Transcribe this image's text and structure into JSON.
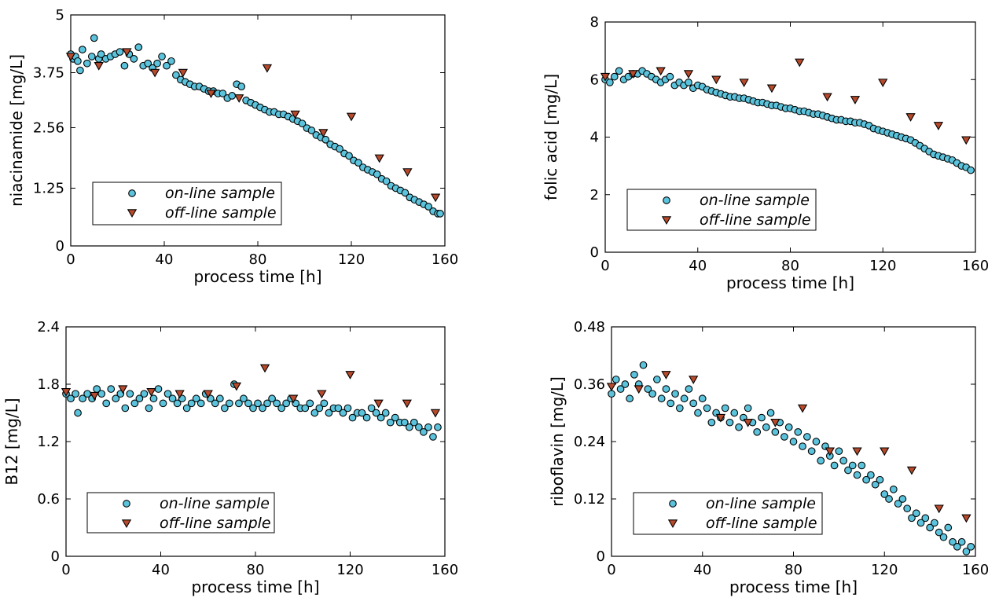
{
  "colors": {
    "online_marker": "#5bc3dc",
    "offline_marker": "#b84a2c",
    "edge": "#000000"
  },
  "chart_data": [
    {
      "type": "scatter",
      "xlabel": "process time [h]",
      "ylabel": "niacinamide [mg/L]",
      "xlim": [
        0,
        160
      ],
      "ylim": [
        0,
        5
      ],
      "xticks": [
        "0",
        "40",
        "80",
        "120",
        "160"
      ],
      "yticks": [
        "0",
        "1.25",
        "2.56",
        "3.75",
        "5"
      ],
      "ytick_values": [
        0,
        1.25,
        2.56,
        3.75,
        5
      ],
      "grid": false,
      "legend_position": "lower-left",
      "series": [
        {
          "name": "on-line sample",
          "marker": "circle",
          "x": [
            0,
            1,
            2,
            3,
            4,
            5,
            7,
            9,
            10,
            12,
            13,
            15,
            17,
            19,
            21,
            23,
            25,
            27,
            29,
            31,
            33,
            35,
            37,
            39,
            41,
            43,
            45,
            47,
            49,
            51,
            53,
            55,
            57,
            59,
            61,
            63,
            65,
            67,
            69,
            71,
            73,
            75,
            77,
            79,
            81,
            83,
            85,
            87,
            89,
            91,
            93,
            95,
            97,
            99,
            101,
            103,
            105,
            107,
            109,
            111,
            113,
            115,
            117,
            119,
            121,
            123,
            125,
            127,
            129,
            131,
            133,
            135,
            137,
            139,
            141,
            143,
            145,
            147,
            149,
            151,
            153,
            155,
            157,
            158
          ],
          "y": [
            4.15,
            4.05,
            4.1,
            4.0,
            3.8,
            4.25,
            3.95,
            4.1,
            4.5,
            4.05,
            4.15,
            4.05,
            4.1,
            4.15,
            4.2,
            3.9,
            4.15,
            4.05,
            4.3,
            3.9,
            3.95,
            3.85,
            3.95,
            4.1,
            3.9,
            4.0,
            3.7,
            3.6,
            3.55,
            3.5,
            3.45,
            3.45,
            3.4,
            3.35,
            3.35,
            3.3,
            3.3,
            3.2,
            3.25,
            3.5,
            3.45,
            3.15,
            3.1,
            3.05,
            3.0,
            2.95,
            2.9,
            2.9,
            2.85,
            2.85,
            2.8,
            2.75,
            2.7,
            2.65,
            2.55,
            2.5,
            2.4,
            2.35,
            2.3,
            2.2,
            2.15,
            2.1,
            2.0,
            1.95,
            1.85,
            1.8,
            1.7,
            1.65,
            1.6,
            1.55,
            1.45,
            1.4,
            1.3,
            1.25,
            1.2,
            1.15,
            1.05,
            1.0,
            0.95,
            0.9,
            0.85,
            0.75,
            0.7,
            0.7
          ]
        },
        {
          "name": "off-line sample",
          "marker": "triangle-down",
          "x": [
            0,
            12,
            24,
            36,
            48,
            60,
            72,
            84,
            96,
            108,
            120,
            132,
            144,
            156
          ],
          "y": [
            4.1,
            3.9,
            4.2,
            3.75,
            3.75,
            3.3,
            3.2,
            3.85,
            2.85,
            2.45,
            2.8,
            1.9,
            1.6,
            1.05
          ]
        }
      ]
    },
    {
      "type": "scatter",
      "xlabel": "process time [h]",
      "ylabel": "folic acid [mg/L]",
      "xlim": [
        0,
        160
      ],
      "ylim": [
        0,
        8
      ],
      "xticks": [
        "0",
        "40",
        "80",
        "120",
        "160"
      ],
      "yticks": [
        "0",
        "2",
        "4",
        "6",
        "8"
      ],
      "ytick_values": [
        0,
        2,
        4,
        6,
        8
      ],
      "grid": false,
      "legend_position": "lower-left",
      "series": [
        {
          "name": "on-line sample",
          "marker": "circle",
          "x": [
            0,
            2,
            4,
            6,
            8,
            10,
            12,
            14,
            16,
            18,
            20,
            22,
            24,
            26,
            28,
            30,
            32,
            34,
            36,
            38,
            40,
            42,
            44,
            46,
            48,
            50,
            52,
            54,
            56,
            58,
            60,
            62,
            64,
            66,
            68,
            70,
            72,
            74,
            76,
            78,
            80,
            82,
            84,
            86,
            88,
            90,
            92,
            94,
            96,
            98,
            100,
            102,
            104,
            106,
            108,
            110,
            112,
            114,
            116,
            118,
            120,
            122,
            124,
            126,
            128,
            130,
            132,
            134,
            136,
            138,
            140,
            142,
            144,
            146,
            148,
            150,
            152,
            154,
            156,
            158
          ],
          "y": [
            6.0,
            5.9,
            6.1,
            6.3,
            6.0,
            6.1,
            6.2,
            6.2,
            6.3,
            6.2,
            6.1,
            6.0,
            5.9,
            6.0,
            6.1,
            5.8,
            5.9,
            5.8,
            5.9,
            5.7,
            5.8,
            5.75,
            5.65,
            5.6,
            5.55,
            5.5,
            5.45,
            5.4,
            5.4,
            5.35,
            5.35,
            5.3,
            5.25,
            5.2,
            5.2,
            5.15,
            5.1,
            5.1,
            5.05,
            5.0,
            5.0,
            4.95,
            4.9,
            4.9,
            4.85,
            4.8,
            4.8,
            4.75,
            4.7,
            4.65,
            4.6,
            4.6,
            4.55,
            4.55,
            4.5,
            4.5,
            4.45,
            4.4,
            4.3,
            4.25,
            4.2,
            4.15,
            4.1,
            4.05,
            4.0,
            3.95,
            3.9,
            3.8,
            3.7,
            3.6,
            3.5,
            3.4,
            3.35,
            3.3,
            3.25,
            3.2,
            3.1,
            3.0,
            2.95,
            2.85
          ]
        },
        {
          "name": "off-line sample",
          "marker": "triangle-down",
          "x": [
            0,
            12,
            24,
            36,
            48,
            60,
            72,
            84,
            96,
            108,
            120,
            132,
            144,
            156
          ],
          "y": [
            6.1,
            6.2,
            6.3,
            6.2,
            6.0,
            5.9,
            5.7,
            6.6,
            5.4,
            5.3,
            5.9,
            4.7,
            4.4,
            3.9
          ]
        }
      ]
    },
    {
      "type": "scatter",
      "xlabel": "process time [h]",
      "ylabel": "B12 [mg/L]",
      "xlim": [
        0,
        160
      ],
      "ylim": [
        0,
        2.4
      ],
      "xticks": [
        "0",
        "40",
        "80",
        "120",
        "160"
      ],
      "yticks": [
        "0",
        "0.6",
        "1.2",
        "1.8",
        "2.4"
      ],
      "ytick_values": [
        0,
        0.6,
        1.2,
        1.8,
        2.4
      ],
      "grid": false,
      "legend_position": "lower-left",
      "series": [
        {
          "name": "on-line sample",
          "marker": "circle",
          "x": [
            0,
            2,
            4,
            5,
            7,
            9,
            11,
            13,
            15,
            17,
            19,
            21,
            23,
            25,
            27,
            29,
            31,
            33,
            35,
            37,
            39,
            41,
            43,
            45,
            47,
            49,
            51,
            53,
            55,
            57,
            59,
            61,
            63,
            65,
            67,
            69,
            71,
            73,
            75,
            77,
            79,
            81,
            83,
            85,
            87,
            89,
            91,
            93,
            95,
            97,
            99,
            101,
            103,
            105,
            107,
            109,
            111,
            113,
            115,
            117,
            119,
            121,
            123,
            125,
            127,
            129,
            131,
            133,
            135,
            137,
            139,
            141,
            143,
            145,
            147,
            149,
            151,
            153,
            155,
            157
          ],
          "y": [
            1.7,
            1.65,
            1.7,
            1.5,
            1.65,
            1.7,
            1.65,
            1.75,
            1.7,
            1.6,
            1.75,
            1.65,
            1.7,
            1.55,
            1.7,
            1.6,
            1.65,
            1.7,
            1.55,
            1.65,
            1.75,
            1.6,
            1.7,
            1.65,
            1.6,
            1.65,
            1.55,
            1.6,
            1.65,
            1.6,
            1.7,
            1.65,
            1.6,
            1.65,
            1.55,
            1.6,
            1.8,
            1.6,
            1.65,
            1.6,
            1.55,
            1.6,
            1.55,
            1.6,
            1.65,
            1.6,
            1.55,
            1.6,
            1.65,
            1.6,
            1.55,
            1.55,
            1.6,
            1.5,
            1.55,
            1.6,
            1.5,
            1.55,
            1.55,
            1.5,
            1.55,
            1.45,
            1.5,
            1.5,
            1.45,
            1.55,
            1.5,
            1.45,
            1.5,
            1.4,
            1.45,
            1.4,
            1.4,
            1.35,
            1.4,
            1.35,
            1.3,
            1.35,
            1.25,
            1.35
          ]
        },
        {
          "name": "off-line sample",
          "marker": "triangle-down",
          "x": [
            0,
            12,
            24,
            36,
            48,
            60,
            72,
            84,
            96,
            108,
            120,
            132,
            144,
            156
          ],
          "y": [
            1.72,
            1.68,
            1.75,
            1.72,
            1.7,
            1.7,
            1.78,
            1.97,
            1.65,
            1.7,
            1.9,
            1.6,
            1.6,
            1.5
          ]
        }
      ]
    },
    {
      "type": "scatter",
      "xlabel": "process time [h]",
      "ylabel": "riboflavin [mg/L]",
      "xlim": [
        0,
        160
      ],
      "ylim": [
        0,
        0.48
      ],
      "xticks": [
        "0",
        "40",
        "80",
        "120",
        "160"
      ],
      "yticks": [
        "0",
        "0.12",
        "0.24",
        "0.36",
        "0.48"
      ],
      "ytick_values": [
        0,
        0.12,
        0.24,
        0.36,
        0.48
      ],
      "grid": false,
      "legend_position": "lower-left",
      "series": [
        {
          "name": "on-line sample",
          "marker": "circle",
          "x": [
            0,
            2,
            4,
            6,
            8,
            10,
            12,
            14,
            16,
            18,
            20,
            22,
            24,
            26,
            28,
            30,
            32,
            34,
            36,
            38,
            40,
            42,
            44,
            46,
            48,
            50,
            52,
            54,
            56,
            58,
            60,
            62,
            64,
            66,
            68,
            70,
            72,
            74,
            76,
            78,
            80,
            82,
            84,
            86,
            88,
            90,
            92,
            94,
            96,
            98,
            100,
            102,
            104,
            106,
            108,
            110,
            112,
            114,
            116,
            118,
            120,
            122,
            124,
            126,
            128,
            130,
            132,
            134,
            136,
            138,
            140,
            142,
            144,
            146,
            148,
            150,
            152,
            154,
            156,
            158
          ],
          "y": [
            0.34,
            0.37,
            0.35,
            0.36,
            0.33,
            0.38,
            0.36,
            0.4,
            0.35,
            0.34,
            0.37,
            0.33,
            0.35,
            0.32,
            0.34,
            0.31,
            0.33,
            0.35,
            0.32,
            0.3,
            0.33,
            0.31,
            0.28,
            0.3,
            0.29,
            0.31,
            0.28,
            0.3,
            0.27,
            0.29,
            0.31,
            0.28,
            0.26,
            0.29,
            0.27,
            0.3,
            0.26,
            0.28,
            0.25,
            0.27,
            0.24,
            0.26,
            0.23,
            0.25,
            0.22,
            0.24,
            0.2,
            0.23,
            0.21,
            0.19,
            0.22,
            0.2,
            0.18,
            0.19,
            0.17,
            0.19,
            0.16,
            0.17,
            0.15,
            0.16,
            0.13,
            0.12,
            0.14,
            0.11,
            0.12,
            0.1,
            0.08,
            0.09,
            0.07,
            0.08,
            0.06,
            0.07,
            0.05,
            0.04,
            0.06,
            0.03,
            0.02,
            0.03,
            0.01,
            0.02
          ]
        },
        {
          "name": "off-line sample",
          "marker": "triangle-down",
          "x": [
            0,
            12,
            24,
            36,
            48,
            60,
            72,
            84,
            96,
            108,
            120,
            132,
            144,
            156
          ],
          "y": [
            0.355,
            0.35,
            0.38,
            0.37,
            0.29,
            0.28,
            0.28,
            0.31,
            0.22,
            0.22,
            0.22,
            0.18,
            0.1,
            0.08
          ]
        }
      ]
    }
  ]
}
